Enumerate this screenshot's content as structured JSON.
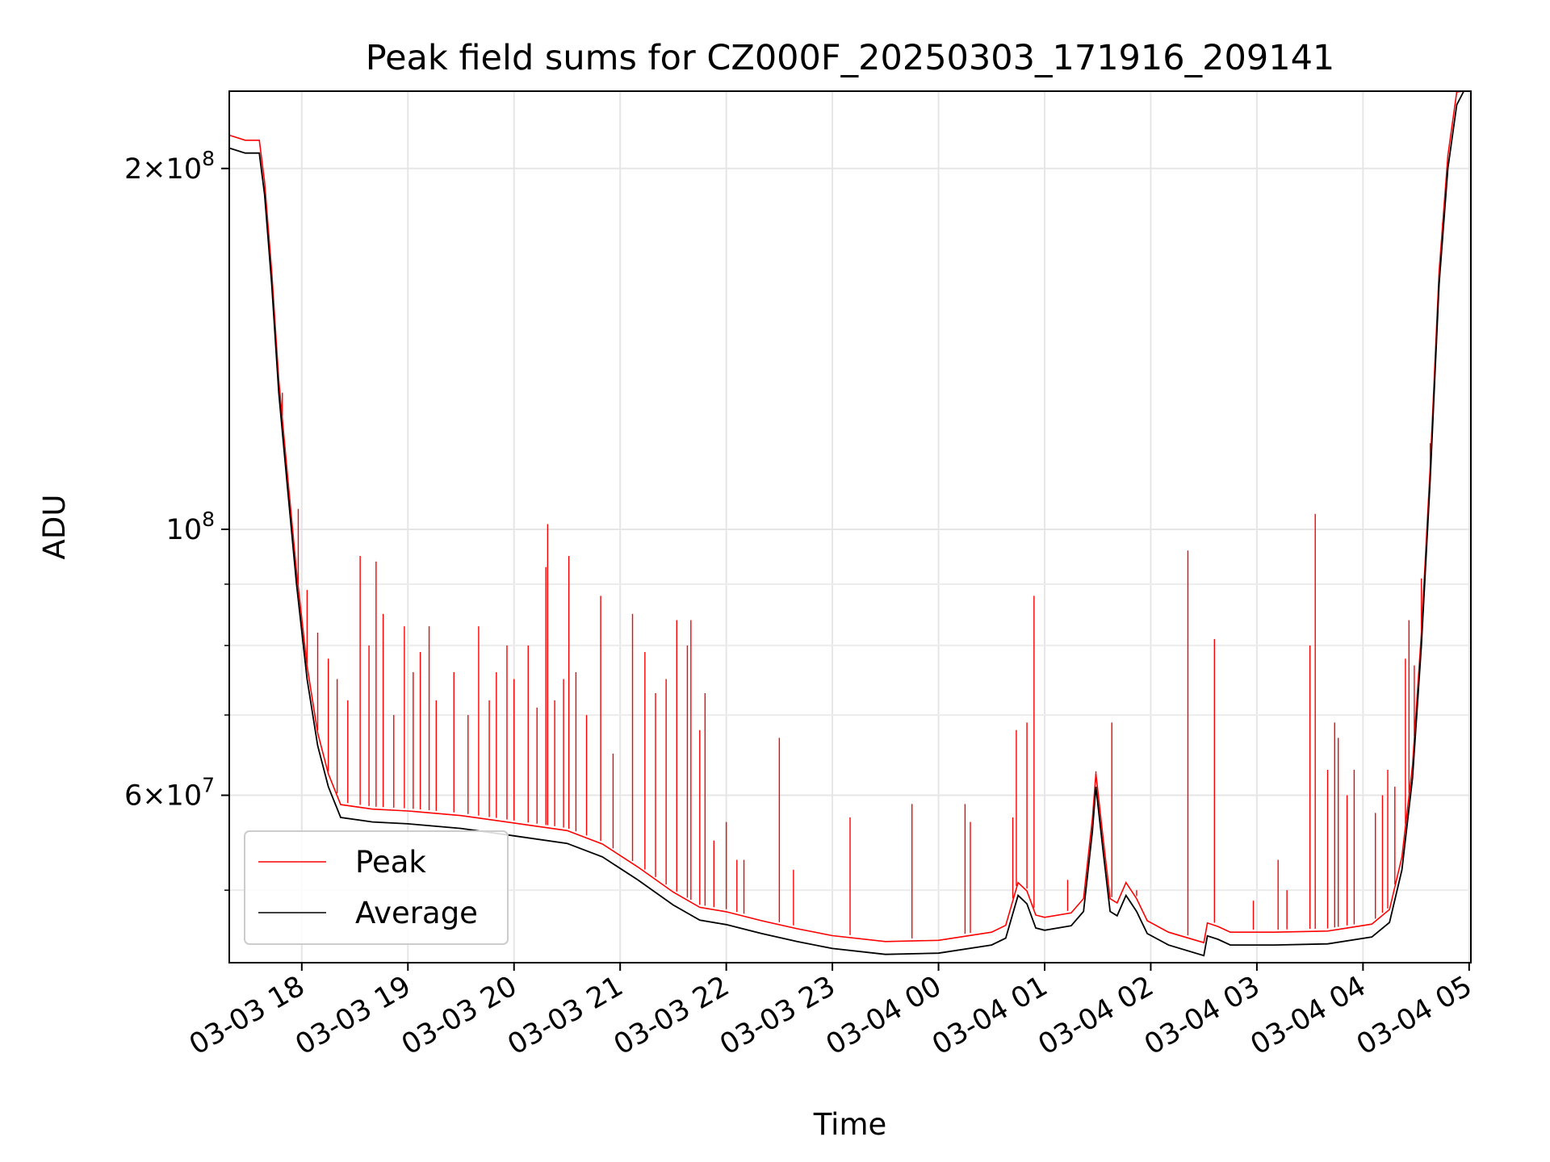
{
  "chart_data": {
    "type": "line",
    "title": "Peak field sums for CZ000F_20250303_171916_209141",
    "xlabel": "Time",
    "ylabel": "ADU",
    "y_scale": "log",
    "grid": true,
    "legend_position": "lower-left",
    "xlim": [
      "2025-03-03 17:19",
      "2025-03-04 05:01"
    ],
    "ylim": [
      43500000,
      232000000
    ],
    "x_ticks": [
      {
        "value": "2025-03-03 18:00",
        "label": "03-03 18"
      },
      {
        "value": "2025-03-03 19:00",
        "label": "03-03 19"
      },
      {
        "value": "2025-03-03 20:00",
        "label": "03-03 20"
      },
      {
        "value": "2025-03-03 21:00",
        "label": "03-03 21"
      },
      {
        "value": "2025-03-03 22:00",
        "label": "03-03 22"
      },
      {
        "value": "2025-03-03 23:00",
        "label": "03-03 23"
      },
      {
        "value": "2025-03-04 00:00",
        "label": "03-04 00"
      },
      {
        "value": "2025-03-04 01:00",
        "label": "03-04 01"
      },
      {
        "value": "2025-03-04 02:00",
        "label": "03-04 02"
      },
      {
        "value": "2025-03-04 03:00",
        "label": "03-04 03"
      },
      {
        "value": "2025-03-04 04:00",
        "label": "03-04 04"
      },
      {
        "value": "2025-03-04 05:00",
        "label": "03-04 05"
      }
    ],
    "y_major_ticks": [
      {
        "value": 60000000,
        "base": "6",
        "exp": "7"
      },
      {
        "value": 100000000,
        "base": "",
        "exp": "8"
      },
      {
        "value": 200000000,
        "base": "2",
        "exp": "8"
      }
    ],
    "y_minor_ticks": [
      50000000,
      70000000,
      80000000,
      90000000
    ],
    "series": [
      {
        "name": "Average",
        "color": "#000000",
        "points": [
          [
            "2025-03-03 17:19",
            208000000
          ],
          [
            "2025-03-03 17:28",
            206000000
          ],
          [
            "2025-03-03 17:36",
            206000000
          ],
          [
            "2025-03-03 17:39",
            190000000
          ],
          [
            "2025-03-03 17:43",
            160000000
          ],
          [
            "2025-03-03 17:47",
            130000000
          ],
          [
            "2025-03-03 17:52",
            108000000
          ],
          [
            "2025-03-03 17:57",
            90000000
          ],
          [
            "2025-03-03 18:03",
            75000000
          ],
          [
            "2025-03-03 18:09",
            66000000
          ],
          [
            "2025-03-03 18:15",
            61000000
          ],
          [
            "2025-03-03 18:22",
            57500000
          ],
          [
            "2025-03-03 18:40",
            57000000
          ],
          [
            "2025-03-03 19:00",
            56800000
          ],
          [
            "2025-03-03 19:30",
            56300000
          ],
          [
            "2025-03-03 20:00",
            55500000
          ],
          [
            "2025-03-03 20:30",
            54700000
          ],
          [
            "2025-03-03 20:50",
            53300000
          ],
          [
            "2025-03-03 21:10",
            51000000
          ],
          [
            "2025-03-03 21:30",
            48600000
          ],
          [
            "2025-03-03 21:45",
            47200000
          ],
          [
            "2025-03-03 22:00",
            46800000
          ],
          [
            "2025-03-03 22:20",
            46000000
          ],
          [
            "2025-03-03 22:40",
            45300000
          ],
          [
            "2025-03-03 23:00",
            44700000
          ],
          [
            "2025-03-03 23:30",
            44200000
          ],
          [
            "2025-03-04 00:00",
            44300000
          ],
          [
            "2025-03-04 00:30",
            45000000
          ],
          [
            "2025-03-04 00:38",
            45600000
          ],
          [
            "2025-03-04 00:45",
            49500000
          ],
          [
            "2025-03-04 00:50",
            48700000
          ],
          [
            "2025-03-04 00:55",
            46500000
          ],
          [
            "2025-03-04 01:00",
            46300000
          ],
          [
            "2025-03-04 01:15",
            46700000
          ],
          [
            "2025-03-04 01:22",
            48000000
          ],
          [
            "2025-03-04 01:27",
            56000000
          ],
          [
            "2025-03-04 01:29",
            61000000
          ],
          [
            "2025-03-04 01:33",
            54000000
          ],
          [
            "2025-03-04 01:37",
            48000000
          ],
          [
            "2025-03-04 01:41",
            47600000
          ],
          [
            "2025-03-04 01:46",
            49500000
          ],
          [
            "2025-03-04 01:52",
            48000000
          ],
          [
            "2025-03-04 01:58",
            46000000
          ],
          [
            "2025-03-04 02:10",
            45000000
          ],
          [
            "2025-03-04 02:30",
            44100000
          ],
          [
            "2025-03-04 02:32",
            45800000
          ],
          [
            "2025-03-04 02:38",
            45500000
          ],
          [
            "2025-03-04 02:45",
            45000000
          ],
          [
            "2025-03-04 03:10",
            45000000
          ],
          [
            "2025-03-04 03:40",
            45100000
          ],
          [
            "2025-03-04 04:05",
            45700000
          ],
          [
            "2025-03-04 04:15",
            47000000
          ],
          [
            "2025-03-04 04:22",
            52000000
          ],
          [
            "2025-03-04 04:28",
            62000000
          ],
          [
            "2025-03-04 04:33",
            80000000
          ],
          [
            "2025-03-04 04:38",
            110000000
          ],
          [
            "2025-03-04 04:43",
            160000000
          ],
          [
            "2025-03-04 04:48",
            200000000
          ],
          [
            "2025-03-04 04:53",
            226000000
          ],
          [
            "2025-03-04 04:57",
            232000000
          ]
        ]
      },
      {
        "name": "Peak",
        "color": "#ff0000",
        "spikes": [
          [
            "2025-03-03 17:49",
            130000000
          ],
          [
            "2025-03-03 17:58",
            104000000
          ],
          [
            "2025-03-03 18:03",
            89000000
          ],
          [
            "2025-03-03 18:09",
            82000000
          ],
          [
            "2025-03-03 18:15",
            78000000
          ],
          [
            "2025-03-03 18:20",
            75000000
          ],
          [
            "2025-03-03 18:26",
            72000000
          ],
          [
            "2025-03-03 18:33",
            95000000
          ],
          [
            "2025-03-03 18:38",
            80000000
          ],
          [
            "2025-03-03 18:42",
            94000000
          ],
          [
            "2025-03-03 18:46",
            85000000
          ],
          [
            "2025-03-03 18:52",
            70000000
          ],
          [
            "2025-03-03 18:58",
            83000000
          ],
          [
            "2025-03-03 19:03",
            76000000
          ],
          [
            "2025-03-03 19:07",
            79000000
          ],
          [
            "2025-03-03 19:12",
            83000000
          ],
          [
            "2025-03-03 19:16",
            72000000
          ],
          [
            "2025-03-03 19:26",
            76000000
          ],
          [
            "2025-03-03 19:34",
            70000000
          ],
          [
            "2025-03-03 19:40",
            83000000
          ],
          [
            "2025-03-03 19:46",
            72000000
          ],
          [
            "2025-03-03 19:50",
            76000000
          ],
          [
            "2025-03-03 19:56",
            80000000
          ],
          [
            "2025-03-03 20:00",
            75000000
          ],
          [
            "2025-03-03 20:08",
            80000000
          ],
          [
            "2025-03-03 20:13",
            71000000
          ],
          [
            "2025-03-03 20:18",
            93000000
          ],
          [
            "2025-03-03 20:19",
            101000000
          ],
          [
            "2025-03-03 20:23",
            72000000
          ],
          [
            "2025-03-03 20:28",
            75000000
          ],
          [
            "2025-03-03 20:31",
            95000000
          ],
          [
            "2025-03-03 20:35",
            76000000
          ],
          [
            "2025-03-03 20:41",
            70000000
          ],
          [
            "2025-03-03 20:49",
            88000000
          ],
          [
            "2025-03-03 20:56",
            65000000
          ],
          [
            "2025-03-03 21:07",
            85000000
          ],
          [
            "2025-03-03 21:14",
            79000000
          ],
          [
            "2025-03-03 21:20",
            73000000
          ],
          [
            "2025-03-03 21:26",
            75000000
          ],
          [
            "2025-03-03 21:32",
            84000000
          ],
          [
            "2025-03-03 21:38",
            80000000
          ],
          [
            "2025-03-03 21:40",
            84000000
          ],
          [
            "2025-03-03 21:45",
            68000000
          ],
          [
            "2025-03-03 21:48",
            73000000
          ],
          [
            "2025-03-03 21:53",
            55000000
          ],
          [
            "2025-03-03 22:00",
            57000000
          ],
          [
            "2025-03-03 22:06",
            53000000
          ],
          [
            "2025-03-03 22:10",
            53000000
          ],
          [
            "2025-03-03 22:30",
            67000000
          ],
          [
            "2025-03-03 22:38",
            52000000
          ],
          [
            "2025-03-03 23:10",
            57500000
          ],
          [
            "2025-03-03 23:45",
            59000000
          ],
          [
            "2025-03-04 00:15",
            59000000
          ],
          [
            "2025-03-04 00:18",
            57000000
          ],
          [
            "2025-03-04 00:42",
            57500000
          ],
          [
            "2025-03-04 00:44",
            68000000
          ],
          [
            "2025-03-04 00:50",
            69000000
          ],
          [
            "2025-03-04 00:54",
            88000000
          ],
          [
            "2025-03-04 01:13",
            51000000
          ],
          [
            "2025-03-04 01:29",
            62000000
          ],
          [
            "2025-03-04 01:38",
            69000000
          ],
          [
            "2025-03-04 01:52",
            50000000
          ],
          [
            "2025-03-04 02:21",
            96000000
          ],
          [
            "2025-03-04 02:36",
            81000000
          ],
          [
            "2025-03-04 02:58",
            49000000
          ],
          [
            "2025-03-04 03:12",
            53000000
          ],
          [
            "2025-03-04 03:17",
            50000000
          ],
          [
            "2025-03-04 03:30",
            80000000
          ],
          [
            "2025-03-04 03:33",
            103000000
          ],
          [
            "2025-03-04 03:40",
            63000000
          ],
          [
            "2025-03-04 03:44",
            69000000
          ],
          [
            "2025-03-04 03:46",
            67000000
          ],
          [
            "2025-03-04 03:51",
            60000000
          ],
          [
            "2025-03-04 03:55",
            63000000
          ],
          [
            "2025-03-04 04:07",
            58000000
          ],
          [
            "2025-03-04 04:11",
            60000000
          ],
          [
            "2025-03-04 04:14",
            63000000
          ],
          [
            "2025-03-04 04:18",
            61000000
          ],
          [
            "2025-03-04 04:24",
            78000000
          ],
          [
            "2025-03-04 04:26",
            84000000
          ],
          [
            "2025-03-04 04:29",
            77000000
          ],
          [
            "2025-03-04 04:33",
            91000000
          ],
          [
            "2025-03-04 04:38",
            118000000
          ],
          [
            "2025-03-04 04:45",
            175000000
          ]
        ]
      }
    ]
  }
}
